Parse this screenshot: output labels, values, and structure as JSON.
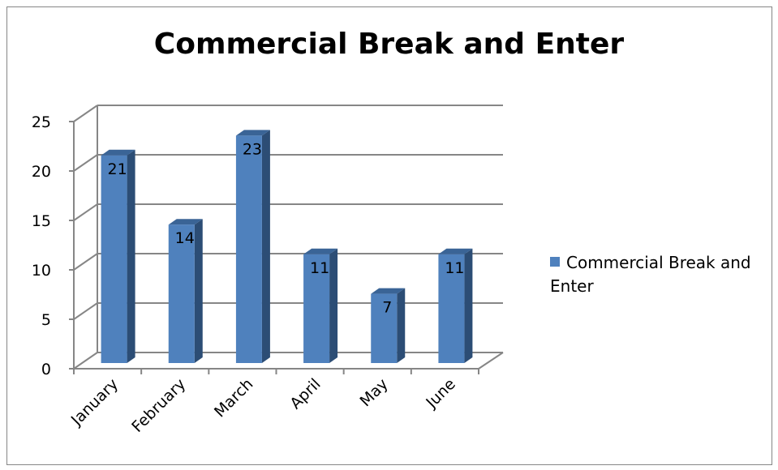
{
  "chart_data": {
    "type": "bar",
    "title": "Commercial Break and Enter",
    "categories": [
      "January",
      "February",
      "March",
      "April",
      "May",
      "June"
    ],
    "series": [
      {
        "name": "Commercial Break and Enter",
        "values": [
          21,
          14,
          23,
          11,
          7,
          11
        ],
        "color": "#4F81BD"
      }
    ],
    "ylim": [
      0,
      25
    ],
    "yticks": [
      "0",
      "5",
      "10",
      "15",
      "20",
      "25"
    ],
    "grid": true,
    "legend_position": "right",
    "style": "3d-column"
  }
}
